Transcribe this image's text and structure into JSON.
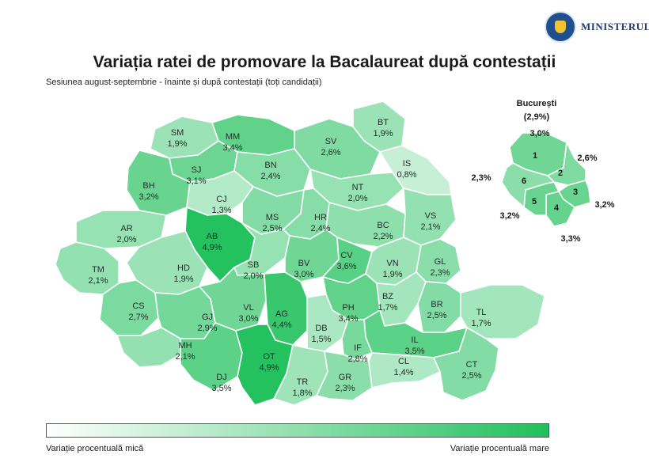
{
  "header": {
    "ministry": "MINISTERUL",
    "title": "Variația ratei de promovare la Bacalaureat după contestații",
    "subtitle": "Sesiunea august-septembrie - înainte și după contestații (toți candidații)"
  },
  "colors": {
    "low": "#ffffff",
    "high": "#20c05c"
  },
  "counties": [
    {
      "code": "SM",
      "value": "1,9%",
      "v": 1.9
    },
    {
      "code": "MM",
      "value": "3,4%",
      "v": 3.4
    },
    {
      "code": "BT",
      "value": "1,9%",
      "v": 1.9
    },
    {
      "code": "SV",
      "value": "2,6%",
      "v": 2.6
    },
    {
      "code": "SJ",
      "value": "3,1%",
      "v": 3.1
    },
    {
      "code": "BN",
      "value": "2,4%",
      "v": 2.4
    },
    {
      "code": "IS",
      "value": "0,8%",
      "v": 0.8
    },
    {
      "code": "BH",
      "value": "3,2%",
      "v": 3.2
    },
    {
      "code": "CJ",
      "value": "1,3%",
      "v": 1.3
    },
    {
      "code": "NT",
      "value": "2,0%",
      "v": 2.0
    },
    {
      "code": "AR",
      "value": "2,0%",
      "v": 2.0
    },
    {
      "code": "MS",
      "value": "2,5%",
      "v": 2.5
    },
    {
      "code": "HR",
      "value": "2,4%",
      "v": 2.4
    },
    {
      "code": "BC",
      "value": "2,2%",
      "v": 2.2
    },
    {
      "code": "VS",
      "value": "2,1%",
      "v": 2.1
    },
    {
      "code": "AB",
      "value": "4,9%",
      "v": 4.9
    },
    {
      "code": "TM",
      "value": "2,1%",
      "v": 2.1
    },
    {
      "code": "HD",
      "value": "1,9%",
      "v": 1.9
    },
    {
      "code": "SB",
      "value": "2,0%",
      "v": 2.0
    },
    {
      "code": "BV",
      "value": "3,0%",
      "v": 3.0
    },
    {
      "code": "CV",
      "value": "3,6%",
      "v": 3.6
    },
    {
      "code": "VN",
      "value": "1,9%",
      "v": 1.9
    },
    {
      "code": "GL",
      "value": "2,3%",
      "v": 2.3
    },
    {
      "code": "CS",
      "value": "2,7%",
      "v": 2.7
    },
    {
      "code": "GJ",
      "value": "2,9%",
      "v": 2.9
    },
    {
      "code": "VL",
      "value": "3,0%",
      "v": 3.0
    },
    {
      "code": "AG",
      "value": "4,4%",
      "v": 4.4
    },
    {
      "code": "PH",
      "value": "3,4%",
      "v": 3.4
    },
    {
      "code": "BZ",
      "value": "1,7%",
      "v": 1.7
    },
    {
      "code": "BR",
      "value": "2,5%",
      "v": 2.5
    },
    {
      "code": "TL",
      "value": "1,7%",
      "v": 1.7
    },
    {
      "code": "MH",
      "value": "2,1%",
      "v": 2.1
    },
    {
      "code": "DB",
      "value": "1,5%",
      "v": 1.5
    },
    {
      "code": "IL",
      "value": "3,5%",
      "v": 3.5
    },
    {
      "code": "IF",
      "value": "2,8%",
      "v": 2.8
    },
    {
      "code": "DJ",
      "value": "3,5%",
      "v": 3.5
    },
    {
      "code": "OT",
      "value": "4,9%",
      "v": 4.9
    },
    {
      "code": "TR",
      "value": "1,8%",
      "v": 1.8
    },
    {
      "code": "GR",
      "value": "2,3%",
      "v": 2.3
    },
    {
      "code": "CL",
      "value": "1,4%",
      "v": 1.4
    },
    {
      "code": "CT",
      "value": "2,5%",
      "v": 2.5
    }
  ],
  "bucuresti": {
    "title": "București",
    "total": "(2,9%)",
    "sectors": [
      {
        "num": "1",
        "value": "3,0%",
        "v": 3.0
      },
      {
        "num": "2",
        "value": "2,6%",
        "v": 2.6
      },
      {
        "num": "3",
        "value": "3,2%",
        "v": 3.2
      },
      {
        "num": "4",
        "value": "3,3%",
        "v": 3.3
      },
      {
        "num": "5",
        "value": "3,2%",
        "v": 3.2
      },
      {
        "num": "6",
        "value": "2,3%",
        "v": 2.3
      }
    ]
  },
  "legend": {
    "low_label": "Variație procentuală mică",
    "high_label": "Variație procentuală mare"
  }
}
